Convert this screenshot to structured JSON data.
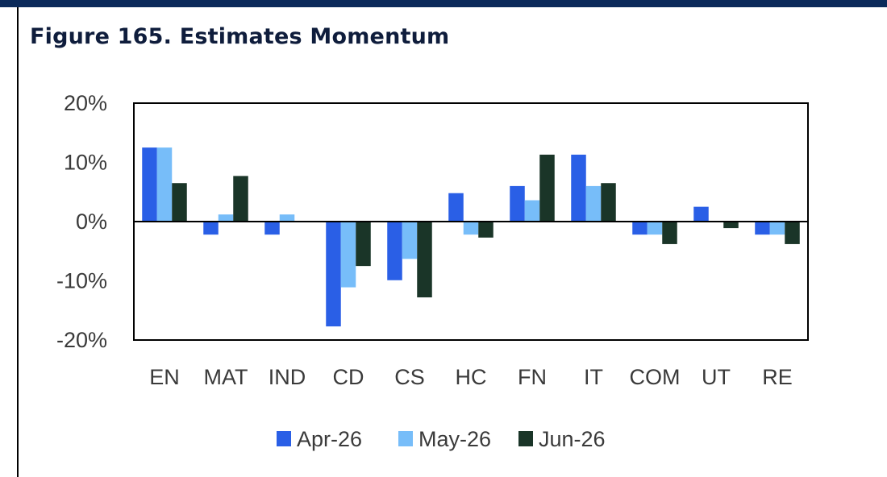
{
  "figure": {
    "title": "Figure 165. Estimates Momentum"
  },
  "chart_data": {
    "type": "bar",
    "title": "Figure 165. Estimates Momentum",
    "categories": [
      "EN",
      "MAT",
      "IND",
      "CD",
      "CS",
      "HC",
      "FN",
      "IT",
      "COM",
      "UT",
      "RE"
    ],
    "series": [
      {
        "name": "Apr-26",
        "color": "#2a5fe6",
        "values": [
          12.5,
          -2.2,
          -2.2,
          -17.7,
          -9.9,
          4.8,
          6.0,
          11.3,
          -2.2,
          2.5,
          -2.2
        ]
      },
      {
        "name": "May-26",
        "color": "#77bdf9",
        "values": [
          12.5,
          1.2,
          1.2,
          -11.1,
          -6.3,
          -2.2,
          3.6,
          6.0,
          -2.2,
          0,
          -2.2
        ]
      },
      {
        "name": "Jun-26",
        "color": "#1a3528",
        "values": [
          6.5,
          7.7,
          0,
          -7.5,
          -12.8,
          -2.7,
          11.3,
          6.5,
          -3.8,
          -1.1,
          -3.8
        ]
      }
    ],
    "ylim": [
      -20,
      20
    ],
    "yticks": [
      20,
      10,
      0,
      -10,
      -20
    ],
    "ytick_labels": [
      "20%",
      "10%",
      "0%",
      "-10%",
      "-20%"
    ],
    "xlabel": "",
    "ylabel": "",
    "grid": false,
    "legend": "bottom"
  }
}
